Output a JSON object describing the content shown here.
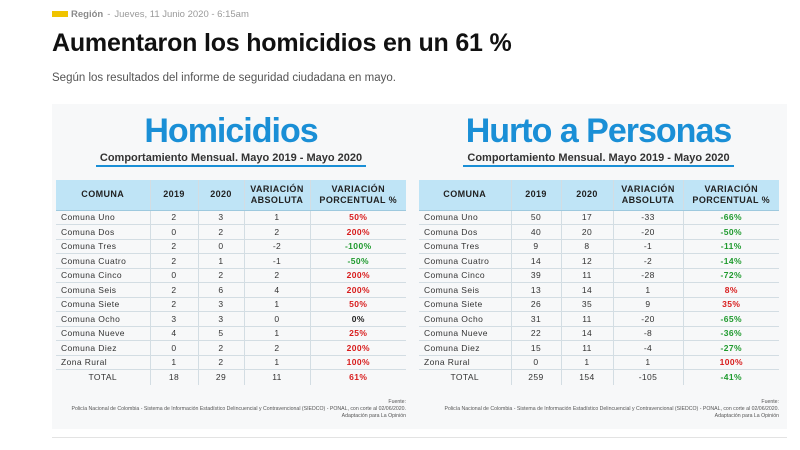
{
  "meta": {
    "section": "Región",
    "separator": "-",
    "date": "Jueves, 11 Junio 2020 - 6:15am"
  },
  "article": {
    "title": "Aumentaron los homicidios en un 61 %",
    "subtitle": "Según los resultados del informe de seguridad ciudadana en mayo."
  },
  "colors": {
    "accent_yellow": "#f0c400",
    "title_blue": "#1a8fd6",
    "header_blue": "#bfe4f6",
    "positive_red": "#d81c1c",
    "negative_green": "#1f9a2e"
  },
  "homicidios": {
    "title": "Homicidios",
    "subtitle": "Comportamiento Mensual. Mayo 2019 - Mayo 2020",
    "headers": {
      "comuna": "COMUNA",
      "y2019": "2019",
      "y2020": "2020",
      "var_abs": "VARIACIÓN ABSOLUTA",
      "var_pct": "VARIACIÓN PORCENTUAL %"
    },
    "rows": [
      {
        "comuna": "Comuna Uno",
        "y2019": "2",
        "y2020": "3",
        "abs": "1",
        "pct": "50%",
        "tone": "red"
      },
      {
        "comuna": "Comuna Dos",
        "y2019": "0",
        "y2020": "2",
        "abs": "2",
        "pct": "200%",
        "tone": "red"
      },
      {
        "comuna": "Comuna Tres",
        "y2019": "2",
        "y2020": "0",
        "abs": "-2",
        "pct": "-100%",
        "tone": "green"
      },
      {
        "comuna": "Comuna Cuatro",
        "y2019": "2",
        "y2020": "1",
        "abs": "-1",
        "pct": "-50%",
        "tone": "green"
      },
      {
        "comuna": "Comuna Cinco",
        "y2019": "0",
        "y2020": "2",
        "abs": "2",
        "pct": "200%",
        "tone": "red"
      },
      {
        "comuna": "Comuna Seis",
        "y2019": "2",
        "y2020": "6",
        "abs": "4",
        "pct": "200%",
        "tone": "red"
      },
      {
        "comuna": "Comuna Siete",
        "y2019": "2",
        "y2020": "3",
        "abs": "1",
        "pct": "50%",
        "tone": "red"
      },
      {
        "comuna": "Comuna Ocho",
        "y2019": "3",
        "y2020": "3",
        "abs": "0",
        "pct": "0%",
        "tone": "black"
      },
      {
        "comuna": "Comuna Nueve",
        "y2019": "4",
        "y2020": "5",
        "abs": "1",
        "pct": "25%",
        "tone": "red"
      },
      {
        "comuna": "Comuna Diez",
        "y2019": "0",
        "y2020": "2",
        "abs": "2",
        "pct": "200%",
        "tone": "red"
      },
      {
        "comuna": "Zona Rural",
        "y2019": "1",
        "y2020": "2",
        "abs": "1",
        "pct": "100%",
        "tone": "red"
      }
    ],
    "total": {
      "comuna": "TOTAL",
      "y2019": "18",
      "y2020": "29",
      "abs": "11",
      "pct": "61%",
      "tone": "red"
    },
    "source": [
      "Fuente:",
      "Policía Nacional de Colombia - Sistema de Información Estadístico Delincuencial y Contravencional (SIEDCO) - PONAL, con corte al 02/06/2020.",
      "Adaptación para La Opinión"
    ]
  },
  "hurto": {
    "title": "Hurto a Personas",
    "subtitle": "Comportamiento Mensual. Mayo 2019 - Mayo 2020",
    "headers": {
      "comuna": "COMUNA",
      "y2019": "2019",
      "y2020": "2020",
      "var_abs": "VARIACIÓN ABSOLUTA",
      "var_pct": "VARIACIÓN PORCENTUAL %"
    },
    "rows": [
      {
        "comuna": "Comuna Uno",
        "y2019": "50",
        "y2020": "17",
        "abs": "-33",
        "pct": "-66%",
        "tone": "green"
      },
      {
        "comuna": "Comuna Dos",
        "y2019": "40",
        "y2020": "20",
        "abs": "-20",
        "pct": "-50%",
        "tone": "green"
      },
      {
        "comuna": "Comuna Tres",
        "y2019": "9",
        "y2020": "8",
        "abs": "-1",
        "pct": "-11%",
        "tone": "green"
      },
      {
        "comuna": "Comuna Cuatro",
        "y2019": "14",
        "y2020": "12",
        "abs": "-2",
        "pct": "-14%",
        "tone": "green"
      },
      {
        "comuna": "Comuna Cinco",
        "y2019": "39",
        "y2020": "11",
        "abs": "-28",
        "pct": "-72%",
        "tone": "green"
      },
      {
        "comuna": "Comuna Seis",
        "y2019": "13",
        "y2020": "14",
        "abs": "1",
        "pct": "8%",
        "tone": "red"
      },
      {
        "comuna": "Comuna Siete",
        "y2019": "26",
        "y2020": "35",
        "abs": "9",
        "pct": "35%",
        "tone": "red"
      },
      {
        "comuna": "Comuna Ocho",
        "y2019": "31",
        "y2020": "11",
        "abs": "-20",
        "pct": "-65%",
        "tone": "green"
      },
      {
        "comuna": "Comuna Nueve",
        "y2019": "22",
        "y2020": "14",
        "abs": "-8",
        "pct": "-36%",
        "tone": "green"
      },
      {
        "comuna": "Comuna Diez",
        "y2019": "15",
        "y2020": "11",
        "abs": "-4",
        "pct": "-27%",
        "tone": "green"
      },
      {
        "comuna": "Zona Rural",
        "y2019": "0",
        "y2020": "1",
        "abs": "1",
        "pct": "100%",
        "tone": "red"
      }
    ],
    "total": {
      "comuna": "TOTAL",
      "y2019": "259",
      "y2020": "154",
      "abs": "-105",
      "pct": "-41%",
      "tone": "green"
    },
    "source": [
      "Fuente:",
      "Policía Nacional de Colombia - Sistema de Información Estadístico Delincuencial y Contravencional (SIEDCO) - PONAL, con corte al 02/06/2020.",
      "Adaptación para La Opinión"
    ]
  }
}
